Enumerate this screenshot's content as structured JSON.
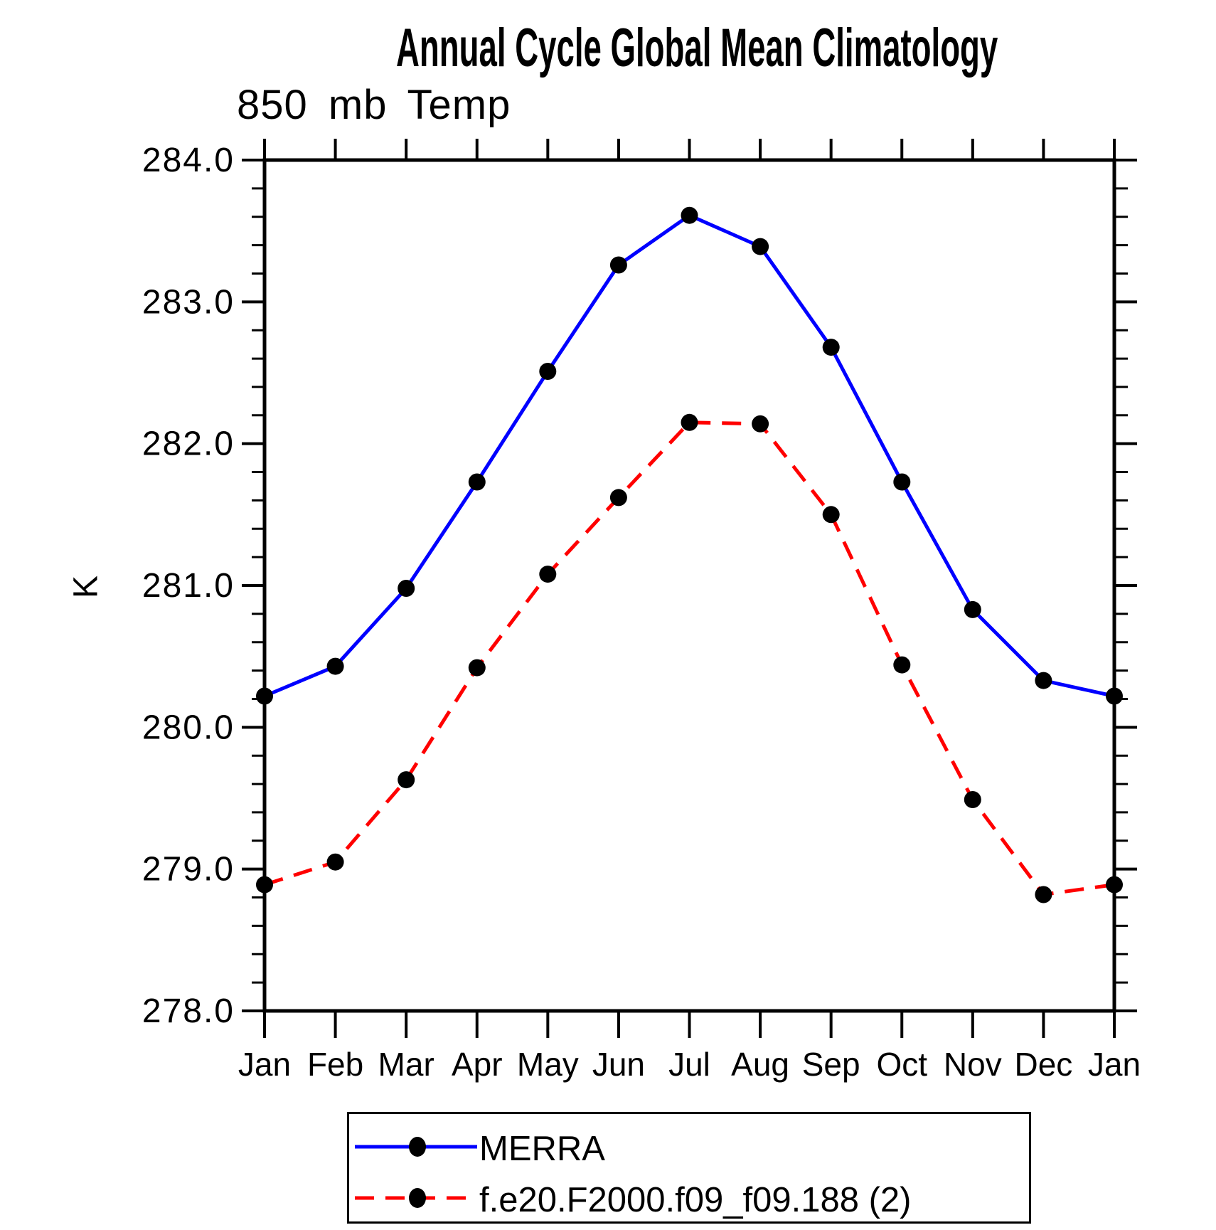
{
  "title": "Annual Cycle Global Mean Climatology",
  "chart_data": {
    "type": "line",
    "title": "Annual Cycle Global Mean Climatology",
    "subtitle": "850 mb Temp",
    "ylabel": "K",
    "xlabel": "",
    "grid": false,
    "legend_position": "bottom",
    "categories": [
      "Jan",
      "Feb",
      "Mar",
      "Apr",
      "May",
      "Jun",
      "Jul",
      "Aug",
      "Sep",
      "Oct",
      "Nov",
      "Dec",
      "Jan"
    ],
    "ylim": [
      278.0,
      284.0
    ],
    "ytick_major_step": 1.0,
    "ytick_minor_step": 0.2,
    "ytick_labels": [
      "278.0",
      "279.0",
      "280.0",
      "281.0",
      "282.0",
      "283.0",
      "284.0"
    ],
    "series": [
      {
        "name": "MERRA",
        "color": "#0000ff",
        "line_style": "solid",
        "marker": "filled-circle",
        "marker_color": "#000000",
        "values": [
          280.22,
          280.43,
          280.98,
          281.73,
          282.51,
          283.26,
          283.61,
          283.39,
          282.68,
          281.73,
          280.83,
          280.33,
          280.22
        ]
      },
      {
        "name": "f.e20.F2000.f09_f09.188 (2)",
        "color": "#ff0000",
        "line_style": "dashed",
        "marker": "filled-circle",
        "marker_color": "#000000",
        "values": [
          278.89,
          279.05,
          279.63,
          280.42,
          281.08,
          281.62,
          282.15,
          282.14,
          281.5,
          280.44,
          279.49,
          278.82,
          278.89
        ]
      }
    ]
  }
}
